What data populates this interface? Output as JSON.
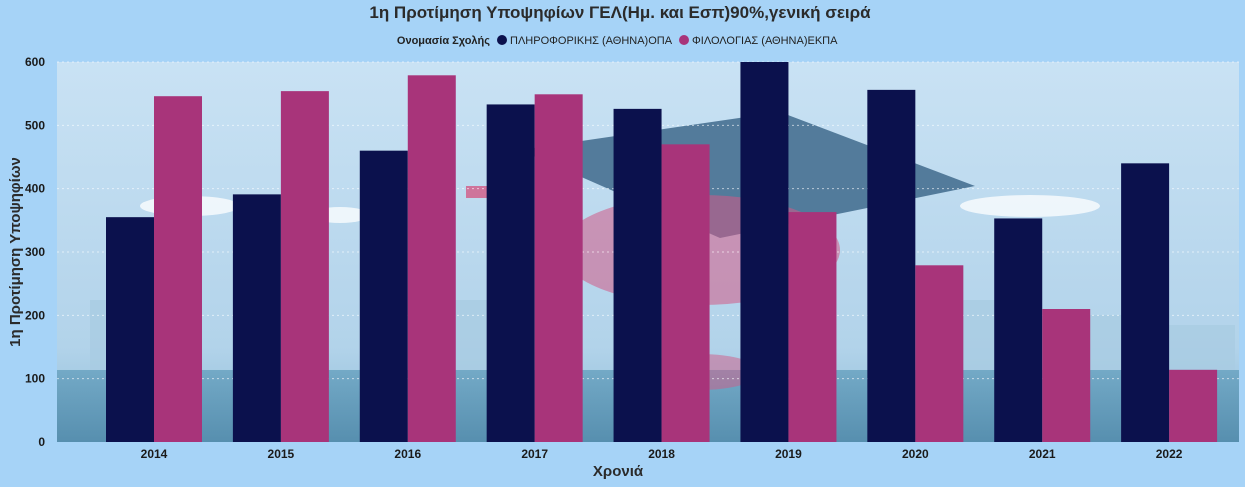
{
  "chart_data": {
    "type": "bar",
    "title": "1η Προτίμηση Υποψηφίων ΓΕΛ(Ημ. και Εσπ)90%,γενική σειρά",
    "legend_title": "Ονομασία Σχολής",
    "legend_placement": "top",
    "xlabel": "Χρονιά",
    "ylabel": "1η Προτίμηση Υποψηφίων",
    "categories": [
      "2014",
      "2015",
      "2016",
      "2017",
      "2018",
      "2019",
      "2020",
      "2021",
      "2022"
    ],
    "ylim": [
      0,
      600
    ],
    "yticks": [
      0,
      100,
      200,
      300,
      400,
      500,
      600
    ],
    "grid": true,
    "series": [
      {
        "name": "ΠΛΗΡΟΦΟΡΙΚΗΣ (ΑΘΗΝΑ)ΟΠΑ",
        "color": "#0b114d",
        "values": [
          355,
          391,
          460,
          533,
          526,
          600,
          556,
          353,
          440
        ]
      },
      {
        "name": "ΦΙΛΟΛΟΓΙΑΣ (ΑΘΗΝΑ)ΕΚΠΑ",
        "color": "#a8347a",
        "values": [
          546,
          554,
          579,
          549,
          470,
          363,
          279,
          210,
          114
        ]
      }
    ]
  }
}
